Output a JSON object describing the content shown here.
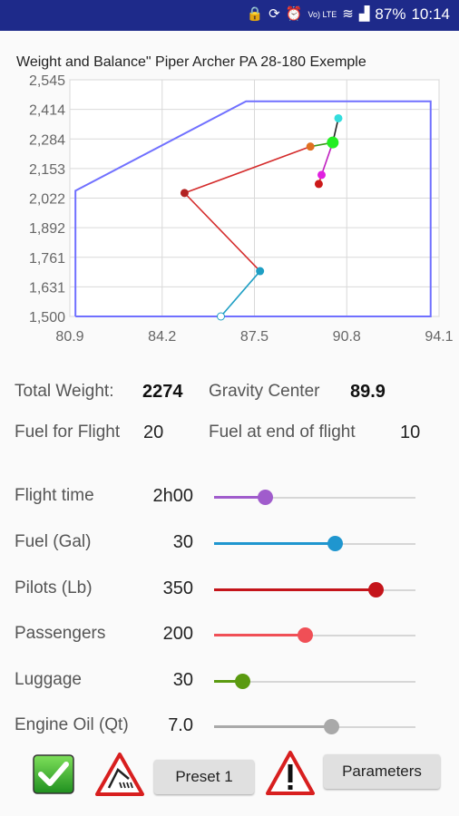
{
  "status_bar": {
    "battery": "87%",
    "time": "10:14",
    "volte": "Vo) LTE"
  },
  "chart": {
    "title": "Weight and Balance\"  Piper Archer PA 28-180 Exemple",
    "chart_data": {
      "type": "line",
      "title": "Weight and Balance\"  Piper Archer PA 28-180 Exemple",
      "xlabel": "",
      "ylabel": "",
      "xlim": [
        80.9,
        94.1
      ],
      "ylim": [
        1500,
        2545
      ],
      "x_ticks": [
        "80.9",
        "84.2",
        "87.5",
        "90.8",
        "94.1"
      ],
      "y_ticks": [
        "1,500",
        "1,631",
        "1,761",
        "1,892",
        "2,022",
        "2,153",
        "2,284",
        "2,414",
        "2,545"
      ],
      "envelope": {
        "x": [
          81.1,
          87.2,
          88.6,
          93.8,
          93.8,
          81.1,
          81.1
        ],
        "y": [
          1500,
          1500,
          1500,
          1500,
          2450,
          2450,
          1500
        ],
        "outline_x": [
          81.1,
          81.1,
          87.2,
          93.8,
          93.8,
          81.1
        ],
        "outline_y": [
          1500,
          2055,
          2450,
          2450,
          1500,
          1500
        ],
        "color": "#7070ff"
      },
      "series": [
        {
          "x": [
            86.3,
            86.3
          ],
          "y": [
            1500,
            1500
          ],
          "color": "#1f9fc4"
        },
        {
          "x": [
            86.3,
            87.7
          ],
          "y": [
            1500,
            1700
          ],
          "color": "#1f9fc4"
        },
        {
          "x": [
            87.7,
            85.0
          ],
          "y": [
            1700,
            2045
          ],
          "color": "#d42b2b"
        },
        {
          "x": [
            85.0,
            89.5
          ],
          "y": [
            2045,
            2250
          ],
          "color": "#d42b2b"
        },
        {
          "x": [
            89.5,
            90.3
          ],
          "y": [
            2250,
            2268
          ],
          "color": "#3b9b1b"
        },
        {
          "x": [
            90.3,
            90.5
          ],
          "y": [
            2268,
            2375
          ],
          "color": "#222222"
        },
        {
          "x": [
            90.3,
            89.9
          ],
          "y": [
            2268,
            2125
          ],
          "color": "#c020c0"
        },
        {
          "x": [
            89.9,
            89.8
          ],
          "y": [
            2125,
            2085
          ],
          "color": "#d42b2b"
        }
      ],
      "points": [
        {
          "x": 86.3,
          "y": 1500,
          "color": "#ffffff",
          "stroke": "#1f9fc4",
          "r": 4
        },
        {
          "x": 87.7,
          "y": 1700,
          "color": "#1f9fc4",
          "stroke": "#1f9fc4",
          "r": 4
        },
        {
          "x": 85.0,
          "y": 2045,
          "color": "#b22222",
          "stroke": "#b22222",
          "r": 4
        },
        {
          "x": 89.5,
          "y": 2250,
          "color": "#e07020",
          "stroke": "#e07020",
          "r": 4
        },
        {
          "x": 90.3,
          "y": 2268,
          "color": "#22ee22",
          "stroke": "#22ee22",
          "r": 6
        },
        {
          "x": 90.5,
          "y": 2375,
          "color": "#33dddd",
          "stroke": "#33dddd",
          "r": 4
        },
        {
          "x": 89.9,
          "y": 2125,
          "color": "#e020e0",
          "stroke": "#e020e0",
          "r": 4
        },
        {
          "x": 89.8,
          "y": 2085,
          "color": "#cc1a1a",
          "stroke": "#cc1a1a",
          "r": 4
        }
      ],
      "grid": true
    }
  },
  "totals": {
    "total_weight_label": "Total Weight:",
    "total_weight_value": "2274",
    "gravity_center_label": "Gravity Center",
    "gravity_center_value": "89.9",
    "fuel_flight_label": "Fuel for Flight",
    "fuel_flight_value": "20",
    "fuel_end_label": "Fuel at end of flight",
    "fuel_end_value": "10"
  },
  "sliders": [
    {
      "label": "Flight time",
      "value": "2h00",
      "fraction": 0.25,
      "color": "#a05ccc"
    },
    {
      "label": "Fuel (Gal)",
      "value": "30",
      "fraction": 0.6,
      "color": "#1f96cf"
    },
    {
      "label": "Pilots (Lb)",
      "value": "350",
      "fraction": 0.8,
      "color": "#c4141a"
    },
    {
      "label": "Passengers",
      "value": "200",
      "fraction": 0.45,
      "color": "#f04f56"
    },
    {
      "label": "Luggage",
      "value": "30",
      "fraction": 0.14,
      "color": "#5a9a10"
    },
    {
      "label": "Engine Oil (Qt)",
      "value": "7.0",
      "fraction": 0.58,
      "color": "#a9a9a9"
    }
  ],
  "buttons": {
    "preset": "Preset 1",
    "parameters": "Parameters"
  }
}
